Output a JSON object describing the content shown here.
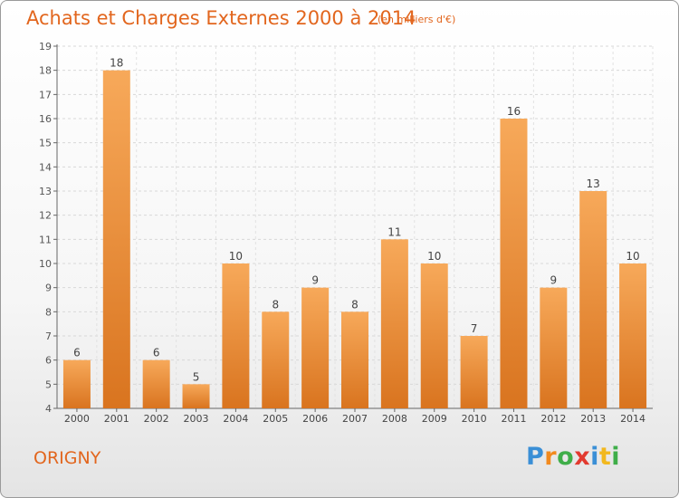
{
  "header": {
    "title": "Achats et Charges Externes 2000 à 2014",
    "subtitle": "(en milliers d'€)"
  },
  "footer": {
    "commune": "ORIGNY",
    "logo_letters": [
      {
        "ch": "P",
        "color": "#3a8fd6"
      },
      {
        "ch": "r",
        "color": "#f28a1e"
      },
      {
        "ch": "o",
        "color": "#3fae49"
      },
      {
        "ch": "x",
        "color": "#e23a2f"
      },
      {
        "ch": "i",
        "color": "#3a8fd6"
      },
      {
        "ch": "t",
        "color": "#f2b81e"
      },
      {
        "ch": "i",
        "color": "#3fae49"
      }
    ]
  },
  "colors": {
    "accent": "#e2661e",
    "bar_top": "#f7a95a",
    "bar_bottom": "#d9741f"
  },
  "chart_data": {
    "type": "bar",
    "categories": [
      "2000",
      "2001",
      "2002",
      "2003",
      "2004",
      "2005",
      "2006",
      "2007",
      "2008",
      "2009",
      "2010",
      "2011",
      "2012",
      "2013",
      "2014"
    ],
    "values": [
      6,
      18,
      6,
      5,
      10,
      8,
      9,
      8,
      11,
      10,
      7,
      16,
      9,
      13,
      10
    ],
    "ylim": [
      4,
      19
    ],
    "yticks": [
      4,
      5,
      6,
      7,
      8,
      9,
      10,
      11,
      12,
      13,
      14,
      15,
      16,
      17,
      18,
      19
    ],
    "grid": true,
    "data_labels": true
  }
}
